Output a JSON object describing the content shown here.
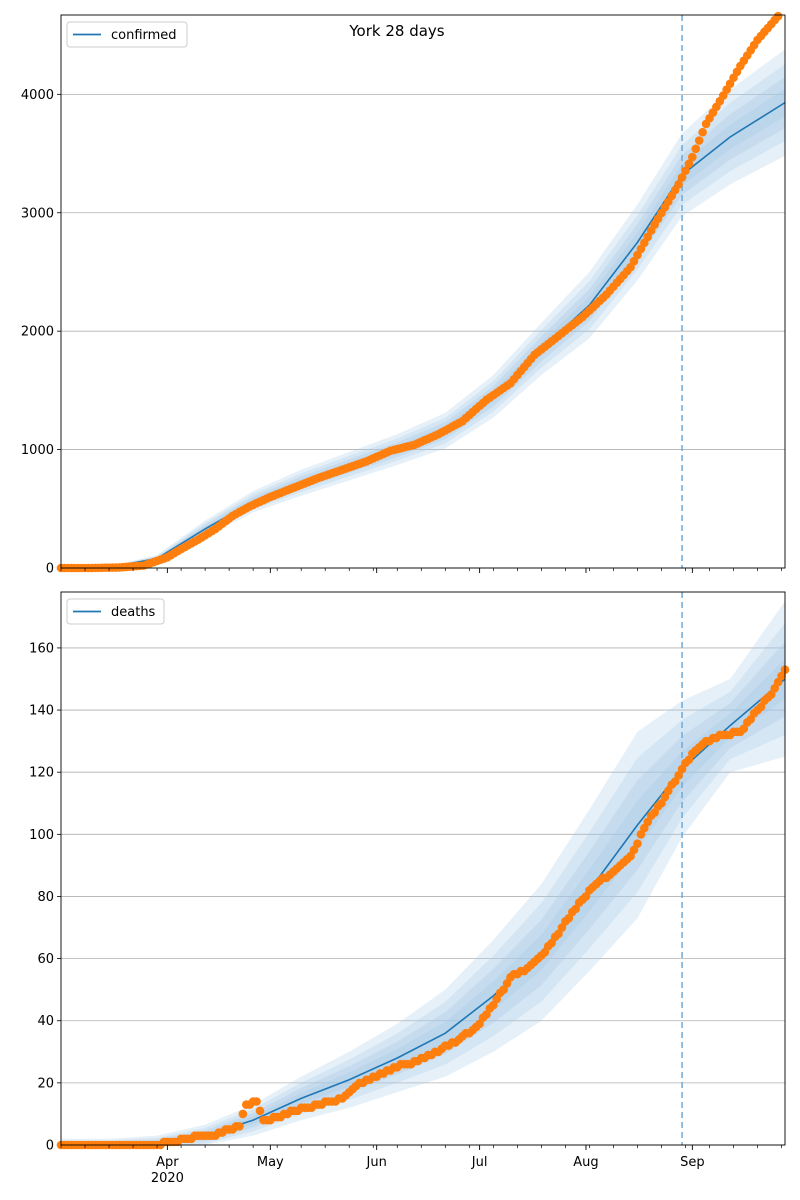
{
  "chart_data": [
    {
      "type": "line",
      "title": "York 28 days",
      "legend": {
        "label": "confirmed",
        "placement": "top-left"
      },
      "ylim": [
        0,
        4670
      ],
      "yticks": [
        0,
        1000,
        2000,
        3000,
        4000
      ],
      "grid_y": true,
      "forecast_start": "2020-08-29",
      "model": {
        "dates": [
          "2020-03-01",
          "2020-03-15",
          "2020-03-29",
          "2020-04-12",
          "2020-04-26",
          "2020-05-10",
          "2020-05-24",
          "2020-06-07",
          "2020-06-21",
          "2020-07-05",
          "2020-07-19",
          "2020-08-02",
          "2020-08-16",
          "2020-08-29",
          "2020-09-12",
          "2020-09-28"
        ],
        "median": [
          0,
          5,
          80,
          330,
          560,
          720,
          860,
          1000,
          1160,
          1450,
          1850,
          2220,
          2750,
          3320,
          3640,
          3930
        ],
        "band_half_width": [
          5,
          8,
          30,
          70,
          90,
          110,
          120,
          130,
          150,
          180,
          220,
          280,
          320,
          350,
          400,
          450
        ]
      },
      "observed": {
        "points": [
          [
            "2020-03-01",
            0
          ],
          [
            "2020-03-10",
            0
          ],
          [
            "2020-03-18",
            5
          ],
          [
            "2020-03-25",
            20
          ],
          [
            "2020-04-01",
            90
          ],
          [
            "2020-04-05",
            160
          ],
          [
            "2020-04-10",
            240
          ],
          [
            "2020-04-15",
            330
          ],
          [
            "2020-04-20",
            440
          ],
          [
            "2020-04-25",
            520
          ],
          [
            "2020-05-01",
            600
          ],
          [
            "2020-05-08",
            680
          ],
          [
            "2020-05-15",
            760
          ],
          [
            "2020-05-22",
            830
          ],
          [
            "2020-05-29",
            900
          ],
          [
            "2020-06-05",
            990
          ],
          [
            "2020-06-12",
            1040
          ],
          [
            "2020-06-19",
            1130
          ],
          [
            "2020-06-26",
            1240
          ],
          [
            "2020-07-03",
            1420
          ],
          [
            "2020-07-10",
            1560
          ],
          [
            "2020-07-17",
            1800
          ],
          [
            "2020-07-24",
            1960
          ],
          [
            "2020-07-31",
            2120
          ],
          [
            "2020-08-07",
            2310
          ],
          [
            "2020-08-14",
            2540
          ],
          [
            "2020-08-21",
            2900
          ],
          [
            "2020-08-28",
            3240
          ],
          [
            "2020-09-01",
            3470
          ],
          [
            "2020-09-05",
            3750
          ],
          [
            "2020-09-10",
            3990
          ],
          [
            "2020-09-15",
            4240
          ],
          [
            "2020-09-20",
            4460
          ],
          [
            "2020-09-26",
            4660
          ]
        ]
      }
    },
    {
      "type": "line",
      "legend": {
        "label": "deaths",
        "placement": "top-left"
      },
      "ylim": [
        0,
        178
      ],
      "yticks": [
        0,
        20,
        40,
        60,
        80,
        100,
        120,
        140,
        160
      ],
      "grid_y": true,
      "forecast_start": "2020-08-29",
      "model": {
        "dates": [
          "2020-03-01",
          "2020-03-15",
          "2020-03-29",
          "2020-04-12",
          "2020-04-26",
          "2020-05-10",
          "2020-05-24",
          "2020-06-07",
          "2020-06-21",
          "2020-07-05",
          "2020-07-19",
          "2020-08-02",
          "2020-08-16",
          "2020-08-29",
          "2020-09-12",
          "2020-09-28"
        ],
        "median": [
          0,
          0,
          0.5,
          3,
          8,
          15,
          21,
          28,
          36,
          48,
          62,
          82,
          103,
          121,
          135,
          150
        ],
        "band_half_width": [
          2,
          2,
          2.5,
          3.5,
          5,
          7,
          9,
          11,
          14,
          18,
          22,
          26,
          30,
          22,
          15,
          25
        ]
      },
      "observed": {
        "points": [
          [
            "2020-03-01",
            0
          ],
          [
            "2020-03-20",
            0
          ],
          [
            "2020-03-29",
            0
          ],
          [
            "2020-04-02",
            1
          ],
          [
            "2020-04-07",
            2
          ],
          [
            "2020-04-10",
            3
          ],
          [
            "2020-04-15",
            3
          ],
          [
            "2020-04-19",
            5
          ],
          [
            "2020-04-22",
            6
          ],
          [
            "2020-04-24",
            13
          ],
          [
            "2020-04-27",
            14
          ],
          [
            "2020-04-29",
            8
          ],
          [
            "2020-05-04",
            9
          ],
          [
            "2020-05-08",
            11
          ],
          [
            "2020-05-15",
            13
          ],
          [
            "2020-05-22",
            15
          ],
          [
            "2020-05-27",
            20
          ],
          [
            "2020-06-01",
            22
          ],
          [
            "2020-06-06",
            25
          ],
          [
            "2020-06-10",
            26
          ],
          [
            "2020-06-15",
            28
          ],
          [
            "2020-06-20",
            31
          ],
          [
            "2020-06-25",
            34
          ],
          [
            "2020-06-30",
            38
          ],
          [
            "2020-07-05",
            45
          ],
          [
            "2020-07-10",
            54
          ],
          [
            "2020-07-15",
            57
          ],
          [
            "2020-07-20",
            62
          ],
          [
            "2020-07-25",
            70
          ],
          [
            "2020-07-30",
            78
          ],
          [
            "2020-08-04",
            84
          ],
          [
            "2020-08-09",
            88
          ],
          [
            "2020-08-14",
            93
          ],
          [
            "2020-08-19",
            104
          ],
          [
            "2020-08-24",
            112
          ],
          [
            "2020-08-29",
            121
          ],
          [
            "2020-09-01",
            126
          ],
          [
            "2020-09-05",
            130
          ],
          [
            "2020-09-10",
            132
          ],
          [
            "2020-09-15",
            133
          ],
          [
            "2020-09-20",
            140
          ],
          [
            "2020-09-24",
            145
          ],
          [
            "2020-09-28",
            153
          ]
        ]
      }
    }
  ],
  "x_axis": {
    "min": "2020-03-01",
    "max": "2020-09-28",
    "month_labels": [
      {
        "date": "2020-04-01",
        "label": "Apr"
      },
      {
        "date": "2020-05-01",
        "label": "May"
      },
      {
        "date": "2020-06-01",
        "label": "Jun"
      },
      {
        "date": "2020-07-01",
        "label": "Jul"
      },
      {
        "date": "2020-08-01",
        "label": "Aug"
      },
      {
        "date": "2020-09-01",
        "label": "Sep"
      }
    ],
    "year_label": {
      "date": "2020-04-01",
      "label": "2020"
    }
  },
  "colors": {
    "model_line": "#1f77b4",
    "observed": "#ff7f0e",
    "band": "#a6c8e5",
    "grid": "#b0b0b0",
    "forecast_line": "#6fa8d6"
  }
}
